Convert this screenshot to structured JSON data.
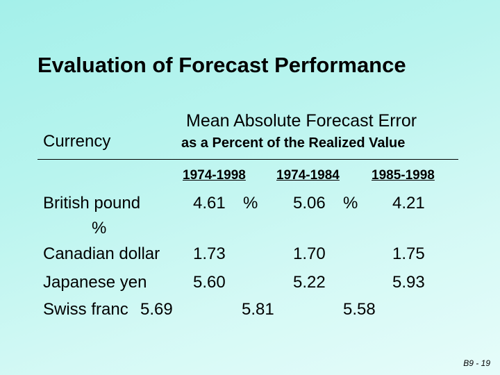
{
  "title": "Evaluation of Forecast Performance",
  "header": {
    "currency_label": "Currency",
    "metric_title": "Mean Absolute Forecast Error",
    "metric_subtitle": "as a Percent of the Realized Value",
    "periods": [
      "1974-1998",
      "1974-1984",
      "1985-1998"
    ]
  },
  "rows": [
    {
      "currency": "British pound",
      "v1": "4.61",
      "v1_unit": "%",
      "v2": "5.06",
      "v2_unit": "%",
      "v3": "4.21",
      "wrap": "%"
    },
    {
      "currency": "Canadian dollar",
      "v1": "1.73",
      "v2": "1.70",
      "v3": "1.75"
    },
    {
      "currency": "Japanese yen",
      "v1": "5.60",
      "v2": "5.22",
      "v3": "5.93"
    },
    {
      "currency": "Swiss franc",
      "v1": "5.69",
      "v2": "5.81",
      "v3": "5.58"
    }
  ],
  "footer": "B9 - 19"
}
